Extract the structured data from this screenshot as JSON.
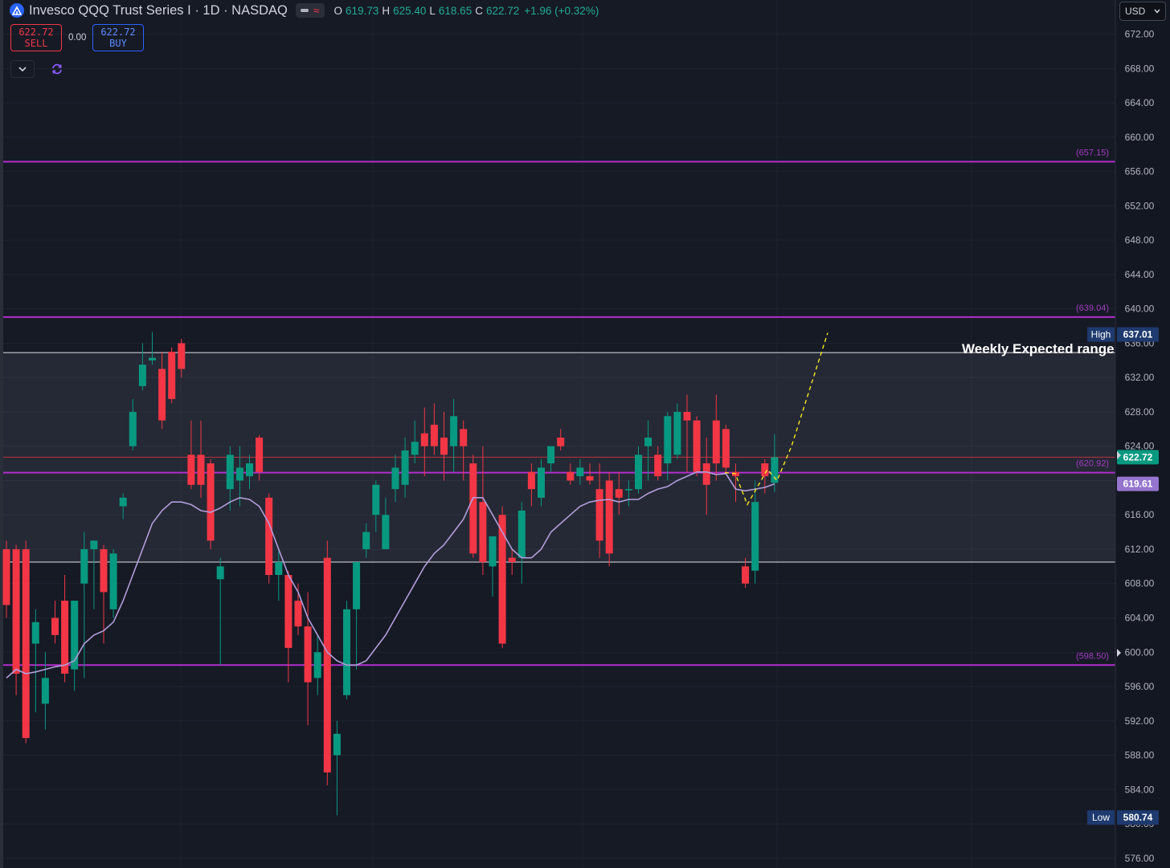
{
  "header": {
    "title": "Invesco QQQ Trust Series I · 1D · NASDAQ",
    "ohlc": {
      "o_key": "O",
      "o": "619.73",
      "h_key": "H",
      "h": "625.40",
      "l_key": "L",
      "l": "618.65",
      "c_key": "C",
      "c": "622.72",
      "change": "+1.96 (+0.32%)"
    },
    "icon": "nasdaq-logo-icon"
  },
  "trade_panel": {
    "sell_price": "622.72",
    "sell_label": "SELL",
    "spread": "0.00",
    "buy_price": "622.72",
    "buy_label": "BUY"
  },
  "currency": "USD",
  "annotations": {
    "weekly_range": "Weekly Expected range"
  },
  "colors": {
    "bg": "#161a25",
    "up": "#089981",
    "down": "#f23645",
    "ma": "#b39ddb",
    "level": "#b22dcc",
    "projection": "#f5e624"
  },
  "chart_data": {
    "type": "candlestick",
    "ylim": [
      573,
      675
    ],
    "y_ticks": [
      576,
      580,
      584,
      588,
      592,
      596,
      600,
      604,
      608,
      612,
      616,
      620,
      624,
      628,
      632,
      636,
      640,
      644,
      648,
      652,
      656,
      660,
      664,
      668,
      672
    ],
    "y_tick_labels": [
      "576.00",
      "580.00",
      "584.00",
      "588.00",
      "592.00",
      "596.00",
      "600.00",
      "604.00",
      "608.00",
      "612.00",
      "616.00",
      "620.00",
      "624.00",
      "628.00",
      "632.00",
      "636.00",
      "640.00",
      "644.00",
      "648.00",
      "652.00",
      "656.00",
      "660.00",
      "664.00",
      "668.00",
      "672.00"
    ],
    "candles": [
      {
        "o": 612,
        "h": 613,
        "l": 604,
        "c": 605.5
      },
      {
        "o": 612,
        "h": 612.5,
        "l": 595,
        "c": 597.5
      },
      {
        "o": 612,
        "h": 613,
        "l": 589.4,
        "c": 590
      },
      {
        "o": 601,
        "h": 605,
        "l": 593,
        "c": 603.5
      },
      {
        "o": 594,
        "h": 600,
        "l": 591,
        "c": 597
      },
      {
        "o": 604,
        "h": 606,
        "l": 601,
        "c": 602
      },
      {
        "o": 606,
        "h": 609,
        "l": 596.5,
        "c": 597.5
      },
      {
        "o": 598,
        "h": 606,
        "l": 595.5,
        "c": 606
      },
      {
        "o": 608,
        "h": 614,
        "l": 597,
        "c": 612
      },
      {
        "o": 612,
        "h": 613,
        "l": 605,
        "c": 613
      },
      {
        "o": 612,
        "h": 612.5,
        "l": 601,
        "c": 607
      },
      {
        "o": 605,
        "h": 612,
        "l": 604,
        "c": 611.5
      },
      {
        "o": 617,
        "h": 618.5,
        "l": 615.5,
        "c": 618
      },
      {
        "o": 624,
        "h": 629.5,
        "l": 623.5,
        "c": 628
      },
      {
        "o": 631,
        "h": 636,
        "l": 630.5,
        "c": 633.5
      },
      {
        "o": 634,
        "h": 637.3,
        "l": 633.5,
        "c": 634.3
      },
      {
        "o": 633,
        "h": 635,
        "l": 626,
        "c": 627
      },
      {
        "o": 635,
        "h": 635.5,
        "l": 629,
        "c": 629.5
      },
      {
        "o": 636,
        "h": 636.5,
        "l": 632,
        "c": 633
      },
      {
        "o": 623,
        "h": 627,
        "l": 619,
        "c": 619.5
      },
      {
        "o": 623,
        "h": 627,
        "l": 618,
        "c": 619.5
      },
      {
        "o": 622,
        "h": 622.5,
        "l": 612,
        "c": 613
      },
      {
        "o": 608.5,
        "h": 611,
        "l": 598.5,
        "c": 610
      },
      {
        "o": 619,
        "h": 624,
        "l": 616.5,
        "c": 623
      },
      {
        "o": 620,
        "h": 624,
        "l": 617,
        "c": 621.5
      },
      {
        "o": 620.5,
        "h": 623,
        "l": 619,
        "c": 622
      },
      {
        "o": 625,
        "h": 625.3,
        "l": 620,
        "c": 621
      },
      {
        "o": 618,
        "h": 618.5,
        "l": 608,
        "c": 609
      },
      {
        "o": 609,
        "h": 612,
        "l": 606,
        "c": 610.5
      },
      {
        "o": 609,
        "h": 609.5,
        "l": 596.5,
        "c": 600.5
      },
      {
        "o": 606,
        "h": 608,
        "l": 602,
        "c": 603
      },
      {
        "o": 603,
        "h": 607,
        "l": 591.5,
        "c": 596.5
      },
      {
        "o": 597,
        "h": 602,
        "l": 595,
        "c": 600
      },
      {
        "o": 611,
        "h": 613,
        "l": 584.5,
        "c": 586
      },
      {
        "o": 588,
        "h": 592,
        "l": 581,
        "c": 590.5
      },
      {
        "o": 595,
        "h": 606,
        "l": 594.5,
        "c": 605
      },
      {
        "o": 605,
        "h": 610,
        "l": 598,
        "c": 610.5
      },
      {
        "o": 612,
        "h": 615,
        "l": 611,
        "c": 614
      },
      {
        "o": 616,
        "h": 620,
        "l": 614,
        "c": 619.5
      },
      {
        "o": 612,
        "h": 618,
        "l": 612,
        "c": 616
      },
      {
        "o": 619,
        "h": 623,
        "l": 617.5,
        "c": 621.5
      },
      {
        "o": 619.5,
        "h": 625,
        "l": 618,
        "c": 623.5
      },
      {
        "o": 623,
        "h": 627,
        "l": 622,
        "c": 624.5
      },
      {
        "o": 625.5,
        "h": 628.5,
        "l": 620.5,
        "c": 624
      },
      {
        "o": 626.5,
        "h": 629,
        "l": 623,
        "c": 624
      },
      {
        "o": 625,
        "h": 628,
        "l": 620,
        "c": 623
      },
      {
        "o": 624,
        "h": 629.5,
        "l": 621,
        "c": 627.5
      },
      {
        "o": 626,
        "h": 627,
        "l": 620,
        "c": 624
      },
      {
        "o": 622,
        "h": 623,
        "l": 611,
        "c": 611.5
      },
      {
        "o": 617.5,
        "h": 624,
        "l": 609,
        "c": 610.5
      },
      {
        "o": 610,
        "h": 613,
        "l": 606.5,
        "c": 613.5
      },
      {
        "o": 616,
        "h": 617,
        "l": 600.5,
        "c": 601
      },
      {
        "o": 611,
        "h": 612,
        "l": 609,
        "c": 610.5
      },
      {
        "o": 611,
        "h": 617.5,
        "l": 608,
        "c": 616.5
      },
      {
        "o": 621,
        "h": 622,
        "l": 617,
        "c": 619
      },
      {
        "o": 618,
        "h": 622.5,
        "l": 617,
        "c": 621.5
      },
      {
        "o": 622,
        "h": 624,
        "l": 621,
        "c": 624
      },
      {
        "o": 625,
        "h": 626,
        "l": 623.5,
        "c": 624
      },
      {
        "o": 621,
        "h": 622,
        "l": 619.5,
        "c": 620
      },
      {
        "o": 620.5,
        "h": 622.5,
        "l": 619.5,
        "c": 621.5
      },
      {
        "o": 620.5,
        "h": 622,
        "l": 619.5,
        "c": 620
      },
      {
        "o": 619,
        "h": 622,
        "l": 611,
        "c": 613
      },
      {
        "o": 620,
        "h": 621,
        "l": 610,
        "c": 611.5
      },
      {
        "o": 619,
        "h": 621,
        "l": 616,
        "c": 618
      },
      {
        "o": 619,
        "h": 620,
        "l": 617,
        "c": 619
      },
      {
        "o": 619,
        "h": 624,
        "l": 618.5,
        "c": 623
      },
      {
        "o": 624,
        "h": 627,
        "l": 620,
        "c": 625
      },
      {
        "o": 623,
        "h": 624,
        "l": 620,
        "c": 620.5
      },
      {
        "o": 622,
        "h": 628,
        "l": 620,
        "c": 627.5
      },
      {
        "o": 623,
        "h": 629,
        "l": 622.5,
        "c": 628
      },
      {
        "o": 628,
        "h": 630,
        "l": 621,
        "c": 627
      },
      {
        "o": 627,
        "h": 627.5,
        "l": 620.5,
        "c": 621
      },
      {
        "o": 622,
        "h": 625,
        "l": 616,
        "c": 619.5
      },
      {
        "o": 627,
        "h": 630,
        "l": 620,
        "c": 622
      },
      {
        "o": 626,
        "h": 626.5,
        "l": 621,
        "c": 621.5
      },
      {
        "o": 621,
        "h": 622,
        "l": 617.5,
        "c": 620.5
      },
      {
        "o": 610,
        "h": 611,
        "l": 607.5,
        "c": 608
      },
      {
        "o": 609.5,
        "h": 620,
        "l": 608,
        "c": 617.5
      },
      {
        "o": 622,
        "h": 622.5,
        "l": 618.5,
        "c": 620.5
      },
      {
        "o": 619.73,
        "h": 625.4,
        "l": 618.65,
        "c": 622.72
      }
    ],
    "ma_series": [
      597,
      598,
      597.5,
      597.7,
      598,
      598.3,
      598.5,
      599,
      601,
      602,
      602.5,
      603.5,
      606,
      609,
      612,
      615,
      616.5,
      617.5,
      617.5,
      617.2,
      616.5,
      616.3,
      616.8,
      617.5,
      618,
      617.8,
      617,
      615,
      612,
      609,
      607,
      604,
      602,
      600,
      599,
      598.5,
      598.5,
      599,
      600.5,
      602,
      604,
      606,
      608,
      610,
      611.5,
      612.5,
      614,
      615.5,
      618,
      618,
      616,
      614,
      612,
      611,
      611,
      612,
      614,
      615,
      616,
      617,
      617.5,
      617.7,
      617.8,
      617.5,
      617.8,
      617.8,
      618.5,
      619,
      619.3,
      620,
      620.5,
      621,
      621,
      620.7,
      620.8,
      619,
      618.8,
      619,
      619.2,
      619.61
    ],
    "projection": [
      620.92,
      620.8,
      617.2,
      621.3,
      620.0,
      624.0,
      637.2
    ],
    "levels": [
      {
        "label": "(657.15)",
        "value": 657.15
      },
      {
        "label": "(639.04)",
        "value": 639.04
      },
      {
        "label": "(620.92)",
        "value": 620.92
      },
      {
        "label": "(598.50)",
        "value": 598.5
      }
    ],
    "weekly_range": {
      "top": 634.9,
      "bottom": 610.5
    },
    "last_price": {
      "value": 622.72,
      "label": "622.72"
    },
    "ma_value": {
      "value": 619.61,
      "label": "619.61"
    },
    "high_marker": {
      "label": "High",
      "value_label": "637.01",
      "value": 637.01
    },
    "low_marker": {
      "label": "Low",
      "value_label": "580.74",
      "value": 580.74
    }
  }
}
